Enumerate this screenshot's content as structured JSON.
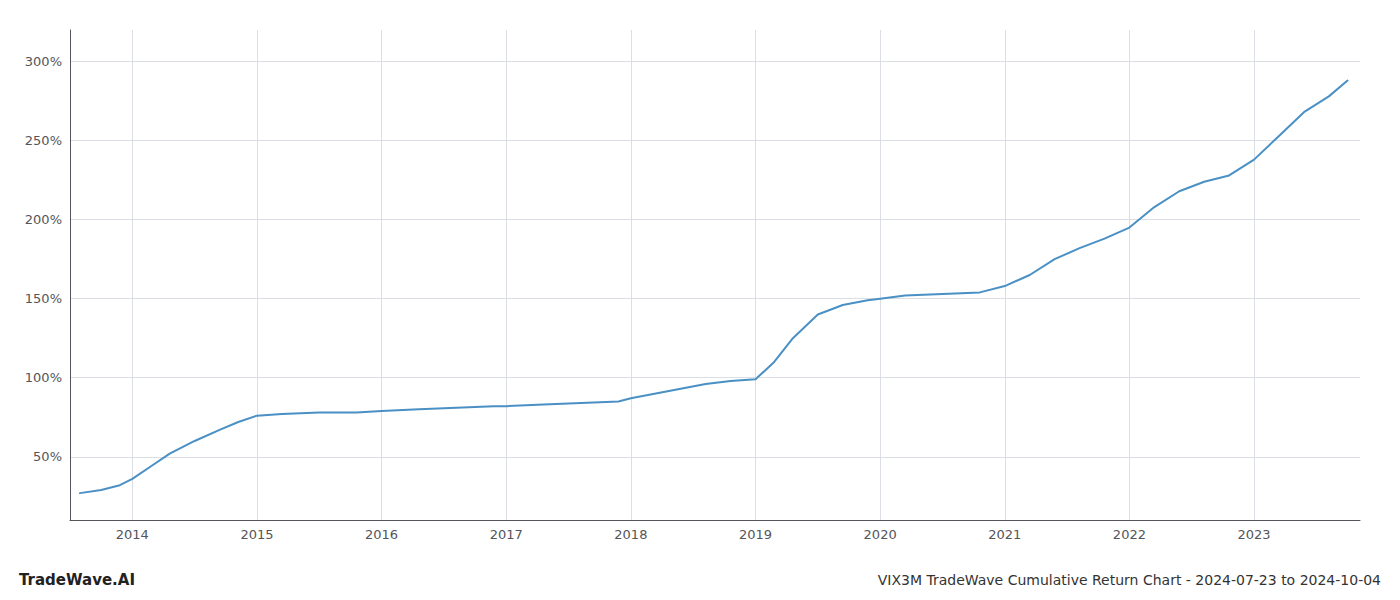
{
  "chart_data": {
    "type": "line",
    "title": "VIX3M TradeWave Cumulative Return Chart - 2024-07-23 to 2024-10-04",
    "annotations": [
      "TradeWave.AI"
    ],
    "color": "#4a90c4",
    "x": [
      2013.58,
      2013.75,
      2013.9,
      2014.0,
      2014.15,
      2014.3,
      2014.5,
      2014.7,
      2014.85,
      2015.0,
      2015.2,
      2015.5,
      2015.8,
      2016.0,
      2016.3,
      2016.6,
      2016.9,
      2017.0,
      2017.3,
      2017.6,
      2017.9,
      2018.0,
      2018.2,
      2018.4,
      2018.6,
      2018.8,
      2019.0,
      2019.15,
      2019.3,
      2019.5,
      2019.7,
      2019.9,
      2020.0,
      2020.2,
      2020.5,
      2020.8,
      2021.0,
      2021.2,
      2021.4,
      2021.6,
      2021.8,
      2022.0,
      2022.2,
      2022.4,
      2022.6,
      2022.8,
      2023.0,
      2023.2,
      2023.4,
      2023.6,
      2023.75
    ],
    "values": [
      27,
      29,
      32,
      36,
      44,
      52,
      60,
      67,
      72,
      76,
      77,
      78,
      78,
      79,
      80,
      81,
      82,
      82,
      83,
      84,
      85,
      87,
      90,
      93,
      96,
      98,
      99,
      110,
      125,
      140,
      146,
      149,
      150,
      152,
      153,
      154,
      158,
      165,
      175,
      182,
      188,
      195,
      208,
      218,
      224,
      228,
      238,
      253,
      268,
      278,
      288
    ],
    "xlim": [
      2013.5,
      2023.85
    ],
    "ylim": [
      10,
      320
    ],
    "xticks": [
      2014,
      2015,
      2016,
      2017,
      2018,
      2019,
      2020,
      2021,
      2022,
      2023
    ],
    "yticks": [
      {
        "value": 50,
        "label": "50%"
      },
      {
        "value": 100,
        "label": "100%"
      },
      {
        "value": 150,
        "label": "150%"
      },
      {
        "value": 200,
        "label": "200%"
      },
      {
        "value": 250,
        "label": "250%"
      },
      {
        "value": 300,
        "label": "300%"
      }
    ],
    "grid": true
  }
}
